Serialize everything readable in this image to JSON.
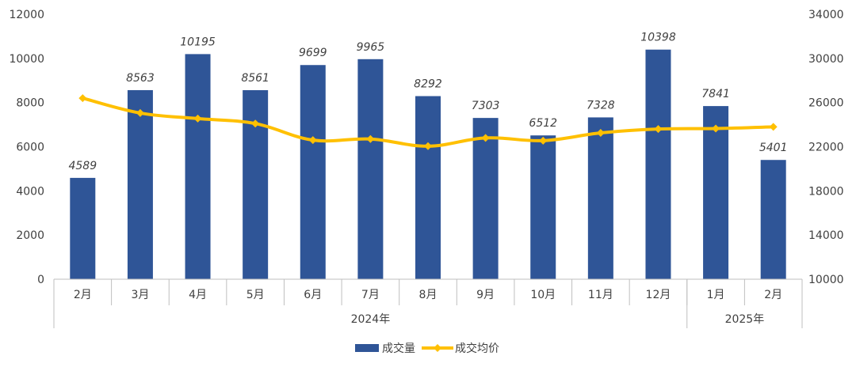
{
  "chart_data": {
    "type": "bar",
    "categories": [
      "2月",
      "3月",
      "4月",
      "5月",
      "6月",
      "7月",
      "8月",
      "9月",
      "10月",
      "11月",
      "12月",
      "1月",
      "2月"
    ],
    "groups": [
      {
        "label": "2024年",
        "start": 0,
        "end": 10
      },
      {
        "label": "2025年",
        "start": 11,
        "end": 12
      }
    ],
    "series": [
      {
        "name": "成交量",
        "type": "bar",
        "axis": "left",
        "color": "#2F5597",
        "values": [
          4589,
          8563,
          10195,
          8561,
          9699,
          9965,
          8292,
          7303,
          6512,
          7328,
          10398,
          7841,
          5401
        ]
      },
      {
        "name": "成交均价",
        "type": "line",
        "axis": "right",
        "color": "#FFC000",
        "values": [
          26400,
          25050,
          24550,
          24100,
          22600,
          22700,
          22050,
          22800,
          22550,
          23250,
          23600,
          23650,
          23800
        ]
      }
    ],
    "y_left": {
      "min": 0,
      "max": 12000,
      "step": 2000
    },
    "y_right": {
      "min": 10000,
      "max": 34000,
      "step": 4000
    },
    "legend_position": "bottom-center",
    "grid": false
  }
}
